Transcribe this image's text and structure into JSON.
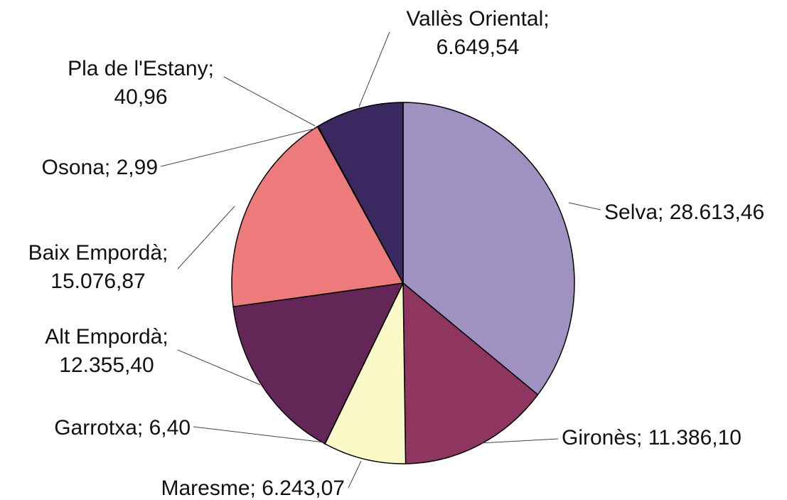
{
  "chart_data": {
    "type": "pie",
    "categories": [
      "Selva",
      "Gironès",
      "Maresme",
      "Garrotxa",
      "Alt Empordà",
      "Baix Empordà",
      "Osona",
      "Pla de l'Estany",
      "Vallès Oriental"
    ],
    "values": [
      28613.46,
      11386.1,
      6243.07,
      6.4,
      12355.4,
      15076.87,
      2.99,
      40.96,
      6649.54
    ],
    "value_labels": [
      "28.613,46",
      "11.386,10",
      "6.243,07",
      "6,40",
      "12.355,40",
      "15.076,87",
      "2,99",
      "40,96",
      "6.649,54"
    ],
    "separator": ";",
    "colors": [
      "#9f91c0",
      "#8e3560",
      "#fafac8",
      "#a8dede",
      "#632656",
      "#ee7b7b",
      "#4a7cc0",
      "#b0b0e0",
      "#3a2860"
    ]
  }
}
